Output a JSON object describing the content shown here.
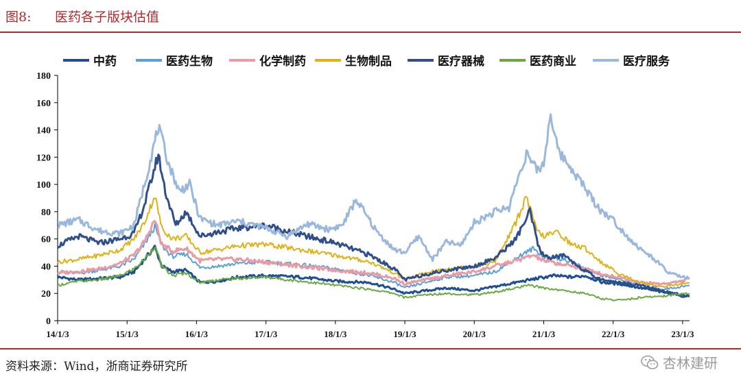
{
  "figure": {
    "number": "图8:",
    "title": "医药各子版块估值",
    "source": "资料来源：Wind，浙商证券研究所",
    "watermark": "杏林建研"
  },
  "chart_data": {
    "type": "line",
    "title": "医药各子版块估值",
    "xlabel": "",
    "ylabel": "",
    "ylim": [
      0,
      180
    ],
    "yticks": [
      0,
      20,
      40,
      60,
      80,
      100,
      120,
      140,
      160,
      180
    ],
    "xlim": [
      0,
      9.1
    ],
    "xticks": [
      {
        "t": 0,
        "label": "14/1/3"
      },
      {
        "t": 1,
        "label": "15/1/3"
      },
      {
        "t": 2,
        "label": "16/1/3"
      },
      {
        "t": 3,
        "label": "17/1/3"
      },
      {
        "t": 4,
        "label": "18/1/3"
      },
      {
        "t": 5,
        "label": "19/1/3"
      },
      {
        "t": 6,
        "label": "20/1/3"
      },
      {
        "t": 7,
        "label": "21/1/3"
      },
      {
        "t": 8,
        "label": "22/1/3"
      },
      {
        "t": 9,
        "label": "23/1/3"
      }
    ],
    "grid": false,
    "legend_position": "top",
    "series": [
      {
        "name": "中药",
        "color": "#1f4e95",
        "width": 3,
        "points": [
          [
            0,
            32
          ],
          [
            0.3,
            30
          ],
          [
            0.6,
            31
          ],
          [
            0.9,
            32
          ],
          [
            1.1,
            36
          ],
          [
            1.25,
            45
          ],
          [
            1.4,
            54
          ],
          [
            1.5,
            40
          ],
          [
            1.65,
            36
          ],
          [
            1.85,
            37
          ],
          [
            2.05,
            28
          ],
          [
            2.3,
            29
          ],
          [
            2.6,
            32
          ],
          [
            3.0,
            33
          ],
          [
            3.5,
            32
          ],
          [
            4.0,
            29
          ],
          [
            4.5,
            28
          ],
          [
            4.85,
            23
          ],
          [
            5.0,
            20
          ],
          [
            5.3,
            22
          ],
          [
            5.6,
            24
          ],
          [
            6.0,
            22
          ],
          [
            6.3,
            25
          ],
          [
            6.6,
            28
          ],
          [
            6.9,
            31
          ],
          [
            7.15,
            33
          ],
          [
            7.4,
            32
          ],
          [
            7.6,
            33
          ],
          [
            7.85,
            28
          ],
          [
            8.1,
            27
          ],
          [
            8.4,
            24
          ],
          [
            8.7,
            21
          ],
          [
            9.0,
            19
          ],
          [
            9.1,
            18
          ]
        ]
      },
      {
        "name": "医药生物",
        "color": "#5b9fd9",
        "width": 2,
        "points": [
          [
            0,
            36
          ],
          [
            0.3,
            35
          ],
          [
            0.6,
            37
          ],
          [
            0.9,
            40
          ],
          [
            1.1,
            45
          ],
          [
            1.25,
            56
          ],
          [
            1.4,
            69
          ],
          [
            1.5,
            55
          ],
          [
            1.65,
            47
          ],
          [
            1.85,
            49
          ],
          [
            2.05,
            39
          ],
          [
            2.3,
            40
          ],
          [
            2.6,
            42
          ],
          [
            3.0,
            43
          ],
          [
            3.5,
            41
          ],
          [
            4.0,
            38
          ],
          [
            4.5,
            33
          ],
          [
            4.85,
            28
          ],
          [
            5.0,
            24
          ],
          [
            5.3,
            28
          ],
          [
            5.6,
            32
          ],
          [
            6.0,
            33
          ],
          [
            6.3,
            36
          ],
          [
            6.6,
            46
          ],
          [
            6.85,
            53
          ],
          [
            7.0,
            47
          ],
          [
            7.2,
            46
          ],
          [
            7.4,
            43
          ],
          [
            7.6,
            38
          ],
          [
            7.85,
            33
          ],
          [
            8.1,
            30
          ],
          [
            8.4,
            26
          ],
          [
            8.7,
            23
          ],
          [
            9.0,
            25
          ],
          [
            9.1,
            26
          ]
        ]
      },
      {
        "name": "化学制药",
        "color": "#e89ba3",
        "width": 3,
        "points": [
          [
            0,
            35
          ],
          [
            0.3,
            36
          ],
          [
            0.6,
            38
          ],
          [
            0.9,
            42
          ],
          [
            1.1,
            48
          ],
          [
            1.25,
            58
          ],
          [
            1.4,
            74
          ],
          [
            1.5,
            56
          ],
          [
            1.65,
            51
          ],
          [
            1.85,
            53
          ],
          [
            2.05,
            44
          ],
          [
            2.3,
            45
          ],
          [
            2.6,
            45
          ],
          [
            3.0,
            43
          ],
          [
            3.5,
            40
          ],
          [
            4.0,
            37
          ],
          [
            4.5,
            35
          ],
          [
            4.85,
            31
          ],
          [
            5.0,
            27
          ],
          [
            5.3,
            30
          ],
          [
            5.6,
            33
          ],
          [
            6.0,
            36
          ],
          [
            6.3,
            40
          ],
          [
            6.6,
            44
          ],
          [
            6.85,
            48
          ],
          [
            7.0,
            44
          ],
          [
            7.2,
            42
          ],
          [
            7.4,
            40
          ],
          [
            7.6,
            38
          ],
          [
            7.85,
            34
          ],
          [
            8.1,
            32
          ],
          [
            8.4,
            28
          ],
          [
            8.7,
            27
          ],
          [
            9.0,
            29
          ],
          [
            9.1,
            31
          ]
        ]
      },
      {
        "name": "生物制品",
        "color": "#e0b015",
        "width": 2,
        "points": [
          [
            0,
            43
          ],
          [
            0.3,
            45
          ],
          [
            0.6,
            48
          ],
          [
            0.9,
            52
          ],
          [
            1.1,
            60
          ],
          [
            1.25,
            72
          ],
          [
            1.4,
            92
          ],
          [
            1.5,
            68
          ],
          [
            1.65,
            60
          ],
          [
            1.85,
            62
          ],
          [
            2.05,
            50
          ],
          [
            2.3,
            52
          ],
          [
            2.6,
            55
          ],
          [
            3.0,
            56
          ],
          [
            3.5,
            52
          ],
          [
            4.0,
            48
          ],
          [
            4.5,
            43
          ],
          [
            4.85,
            35
          ],
          [
            5.0,
            30
          ],
          [
            5.3,
            35
          ],
          [
            5.6,
            38
          ],
          [
            6.0,
            40
          ],
          [
            6.3,
            43
          ],
          [
            6.6,
            72
          ],
          [
            6.75,
            91
          ],
          [
            6.9,
            66
          ],
          [
            7.0,
            62
          ],
          [
            7.2,
            65
          ],
          [
            7.4,
            56
          ],
          [
            7.6,
            53
          ],
          [
            7.85,
            42
          ],
          [
            8.1,
            34
          ],
          [
            8.4,
            28
          ],
          [
            8.7,
            25
          ],
          [
            9.0,
            27
          ],
          [
            9.1,
            28
          ]
        ]
      },
      {
        "name": "医疗器械",
        "color": "#2f4f8c",
        "width": 3,
        "points": [
          [
            0,
            55
          ],
          [
            0.3,
            62
          ],
          [
            0.6,
            57
          ],
          [
            0.9,
            60
          ],
          [
            1.1,
            64
          ],
          [
            1.25,
            85
          ],
          [
            1.45,
            122
          ],
          [
            1.55,
            95
          ],
          [
            1.7,
            70
          ],
          [
            1.85,
            80
          ],
          [
            2.05,
            62
          ],
          [
            2.3,
            65
          ],
          [
            2.6,
            68
          ],
          [
            3.0,
            70
          ],
          [
            3.5,
            63
          ],
          [
            4.0,
            57
          ],
          [
            4.5,
            48
          ],
          [
            4.85,
            38
          ],
          [
            5.0,
            30
          ],
          [
            5.3,
            34
          ],
          [
            5.6,
            37
          ],
          [
            6.0,
            40
          ],
          [
            6.3,
            46
          ],
          [
            6.6,
            60
          ],
          [
            6.8,
            80
          ],
          [
            6.95,
            50
          ],
          [
            7.1,
            46
          ],
          [
            7.3,
            48
          ],
          [
            7.5,
            40
          ],
          [
            7.7,
            33
          ],
          [
            7.85,
            30
          ],
          [
            8.1,
            28
          ],
          [
            8.4,
            26
          ],
          [
            8.7,
            22
          ],
          [
            9.0,
            18
          ],
          [
            9.1,
            18
          ]
        ]
      },
      {
        "name": "医药商业",
        "color": "#6aaa43",
        "width": 2,
        "points": [
          [
            0,
            26
          ],
          [
            0.3,
            29
          ],
          [
            0.6,
            30
          ],
          [
            0.9,
            33
          ],
          [
            1.1,
            38
          ],
          [
            1.25,
            45
          ],
          [
            1.4,
            55
          ],
          [
            1.5,
            40
          ],
          [
            1.65,
            33
          ],
          [
            1.85,
            35
          ],
          [
            2.05,
            28
          ],
          [
            2.3,
            30
          ],
          [
            2.6,
            31
          ],
          [
            3.0,
            32
          ],
          [
            3.5,
            29
          ],
          [
            4.0,
            26
          ],
          [
            4.5,
            23
          ],
          [
            4.85,
            20
          ],
          [
            5.0,
            17
          ],
          [
            5.3,
            19
          ],
          [
            5.6,
            20
          ],
          [
            6.0,
            19
          ],
          [
            6.3,
            21
          ],
          [
            6.6,
            24
          ],
          [
            6.8,
            26
          ],
          [
            7.0,
            24
          ],
          [
            7.3,
            22
          ],
          [
            7.6,
            20
          ],
          [
            7.85,
            16
          ],
          [
            8.1,
            15
          ],
          [
            8.4,
            17
          ],
          [
            8.7,
            18
          ],
          [
            9.0,
            20
          ],
          [
            9.1,
            20
          ]
        ]
      },
      {
        "name": "医疗服务",
        "color": "#9ab8dd",
        "width": 3,
        "points": [
          [
            0,
            70
          ],
          [
            0.3,
            74
          ],
          [
            0.6,
            66
          ],
          [
            0.9,
            64
          ],
          [
            1.1,
            70
          ],
          [
            1.25,
            100
          ],
          [
            1.45,
            142
          ],
          [
            1.6,
            115
          ],
          [
            1.75,
            95
          ],
          [
            1.9,
            100
          ],
          [
            2.05,
            75
          ],
          [
            2.3,
            70
          ],
          [
            2.6,
            73
          ],
          [
            3.0,
            68
          ],
          [
            3.3,
            62
          ],
          [
            3.6,
            71
          ],
          [
            3.9,
            67
          ],
          [
            4.1,
            70
          ],
          [
            4.3,
            89
          ],
          [
            4.6,
            65
          ],
          [
            4.85,
            52
          ],
          [
            5.0,
            50
          ],
          [
            5.2,
            62
          ],
          [
            5.4,
            45
          ],
          [
            5.6,
            58
          ],
          [
            5.8,
            55
          ],
          [
            6.0,
            72
          ],
          [
            6.3,
            80
          ],
          [
            6.5,
            83
          ],
          [
            6.6,
            100
          ],
          [
            6.75,
            123
          ],
          [
            6.9,
            110
          ],
          [
            7.0,
            115
          ],
          [
            7.1,
            153
          ],
          [
            7.2,
            125
          ],
          [
            7.4,
            112
          ],
          [
            7.6,
            97
          ],
          [
            7.8,
            82
          ],
          [
            8.0,
            74
          ],
          [
            8.2,
            62
          ],
          [
            8.4,
            52
          ],
          [
            8.6,
            45
          ],
          [
            8.8,
            35
          ],
          [
            9.0,
            32
          ],
          [
            9.1,
            31
          ]
        ]
      }
    ]
  }
}
